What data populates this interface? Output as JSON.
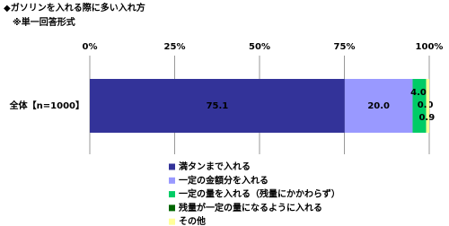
{
  "chart_data": {
    "type": "stacked-bar-horizontal",
    "title": "◆ガソリンを入れる際に多い入れ方",
    "subtitle": "※単一回答形式",
    "categories": [
      "全体【n=1000】"
    ],
    "series": [
      {
        "name": "満タンまで入れる",
        "color": "#333399",
        "values": [
          75.1
        ]
      },
      {
        "name": "一定の金額分を入れる",
        "color": "#9999ff",
        "values": [
          20.0
        ],
        "value_labels": [
          "20.0"
        ]
      },
      {
        "name": "一定の量を入れる（残量にかかわらず）",
        "color": "#00cc66",
        "values": [
          4.0
        ],
        "value_labels": [
          "4.0"
        ]
      },
      {
        "name": "残量が一定の量になるように入れる",
        "color": "#006600",
        "values": [
          0.0
        ],
        "value_labels": [
          "0.0"
        ]
      },
      {
        "name": "その他",
        "color": "#ffff99",
        "values": [
          0.9
        ]
      }
    ],
    "xlim": [
      0,
      100
    ],
    "xticks": [
      {
        "value": 0,
        "label": "0%"
      },
      {
        "value": 25,
        "label": "25%"
      },
      {
        "value": 50,
        "label": "50%"
      },
      {
        "value": 75,
        "label": "75%"
      },
      {
        "value": 100,
        "label": "100%"
      }
    ],
    "grid": true
  }
}
